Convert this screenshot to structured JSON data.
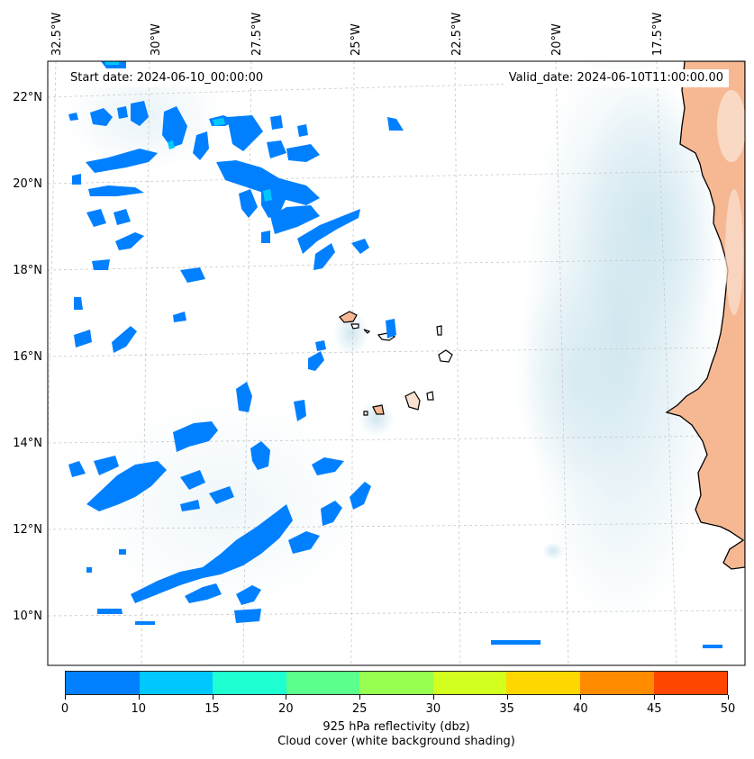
{
  "header": {
    "start_date": "Start date: 2024-06-10_00:00:00",
    "valid_date": "Valid_date: 2024-06-10T11:00:00.00"
  },
  "map": {
    "lon_labels": [
      "32.5°W",
      "30°W",
      "27.5°W",
      "25°W",
      "22.5°W",
      "20°W",
      "17.5°W"
    ],
    "lat_labels": [
      "22°N",
      "20°N",
      "18°N",
      "16°N",
      "14°N",
      "12°N",
      "10°N"
    ],
    "extent": {
      "lon_min": -33,
      "lon_max": -15.5,
      "lat_min": 9,
      "lat_max": 22.8
    },
    "land_color": "#f6b893",
    "cloud_color": "#d7ebf2"
  },
  "colorbar": {
    "ticks": [
      "0",
      "10",
      "15",
      "20",
      "25",
      "30",
      "35",
      "40",
      "45",
      "50"
    ],
    "colors": [
      "#0080ff",
      "#00c8ff",
      "#1effd2",
      "#5aff8c",
      "#96ff50",
      "#d2ff1e",
      "#ffd700",
      "#ff8c00",
      "#ff4600"
    ],
    "label": "925 hPa reflectivity (dbz)",
    "sublabel": "Cloud cover (white background shading)"
  }
}
